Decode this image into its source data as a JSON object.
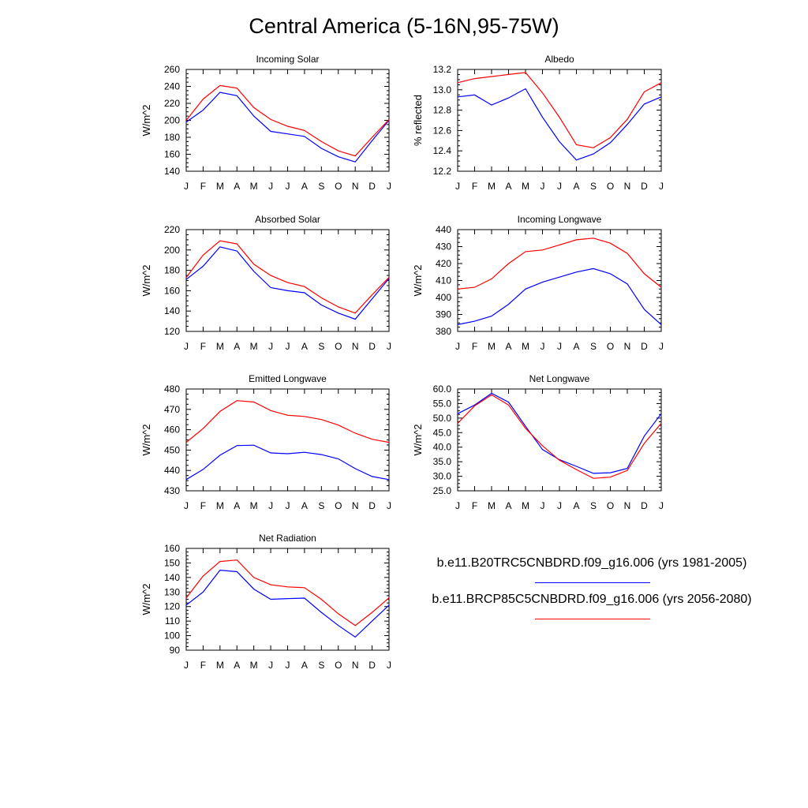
{
  "page": {
    "title": "Central America (5-16N,95-75W)"
  },
  "legend": {
    "items": [
      {
        "label": "b.e11.B20TRC5CNBDRD.f09_g16.006 (yrs 1981-2005)",
        "color": "#0000ff"
      },
      {
        "label": "b.e11.BRCP85C5CNBDRD.f09_g16.006 (yrs 2056-2080)",
        "color": "#ff0000"
      }
    ]
  },
  "colors": {
    "series_1": "#0000ff",
    "series_2": "#ff0000"
  },
  "chart_data": [
    {
      "type": "line",
      "title": "Incoming Solar",
      "ylabel": "W/m^2",
      "categories": [
        "J",
        "F",
        "M",
        "A",
        "M",
        "J",
        "J",
        "A",
        "S",
        "O",
        "N",
        "D",
        "J"
      ],
      "ylim": [
        140,
        260
      ],
      "yticks": [
        "140",
        "160",
        "180",
        "200",
        "220",
        "240",
        "260"
      ],
      "series": [
        {
          "color": "#0000ff",
          "values": [
            198,
            212,
            233,
            229,
            205,
            187,
            184,
            181,
            167,
            157,
            151,
            176,
            200
          ]
        },
        {
          "color": "#ff0000",
          "values": [
            200,
            225,
            241,
            238,
            215,
            201,
            193,
            188,
            175,
            164,
            158,
            180,
            201
          ]
        }
      ]
    },
    {
      "type": "line",
      "title": "Albedo",
      "ylabel": "% reflected",
      "categories": [
        "J",
        "F",
        "M",
        "A",
        "M",
        "J",
        "J",
        "A",
        "S",
        "O",
        "N",
        "D",
        "J"
      ],
      "ylim": [
        12.2,
        13.2
      ],
      "yticks": [
        "12.2",
        "12.4",
        "12.6",
        "12.8",
        "13.0",
        "13.2"
      ],
      "series": [
        {
          "color": "#0000ff",
          "values": [
            12.93,
            12.95,
            12.85,
            12.92,
            13.01,
            12.73,
            12.49,
            12.31,
            12.37,
            12.48,
            12.66,
            12.86,
            12.93
          ]
        },
        {
          "color": "#ff0000",
          "values": [
            13.07,
            13.11,
            13.13,
            13.15,
            13.17,
            12.97,
            12.73,
            12.46,
            12.43,
            12.53,
            12.71,
            12.98,
            13.07
          ]
        }
      ]
    },
    {
      "type": "line",
      "title": "Absorbed Solar",
      "ylabel": "W/m^2",
      "categories": [
        "J",
        "F",
        "M",
        "A",
        "M",
        "J",
        "J",
        "A",
        "S",
        "O",
        "N",
        "D",
        "J"
      ],
      "ylim": [
        120,
        220
      ],
      "yticks": [
        "120",
        "140",
        "160",
        "180",
        "200",
        "220"
      ],
      "series": [
        {
          "color": "#0000ff",
          "values": [
            171,
            184,
            203,
            199,
            179,
            163,
            160,
            158,
            146,
            138,
            132,
            152,
            172
          ]
        },
        {
          "color": "#ff0000",
          "values": [
            173,
            195,
            209,
            206,
            186,
            175,
            168,
            164,
            153,
            144,
            138,
            156,
            173
          ]
        }
      ]
    },
    {
      "type": "line",
      "title": "Incoming Longwave",
      "ylabel": "W/m^2",
      "categories": [
        "J",
        "F",
        "M",
        "A",
        "M",
        "J",
        "J",
        "A",
        "S",
        "O",
        "N",
        "D",
        "J"
      ],
      "ylim": [
        380,
        440
      ],
      "yticks": [
        "380",
        "390",
        "400",
        "410",
        "420",
        "430",
        "440"
      ],
      "series": [
        {
          "color": "#0000ff",
          "values": [
            384,
            386,
            389,
            396,
            405,
            409,
            412,
            415,
            417,
            414,
            408,
            393,
            384
          ]
        },
        {
          "color": "#ff0000",
          "values": [
            405,
            406,
            411,
            420,
            427,
            428,
            431,
            434,
            435,
            432,
            426,
            414,
            406
          ]
        }
      ]
    },
    {
      "type": "line",
      "title": "Emitted Longwave",
      "ylabel": "W/m^2",
      "categories": [
        "J",
        "F",
        "M",
        "A",
        "M",
        "J",
        "J",
        "A",
        "S",
        "O",
        "N",
        "D",
        "J"
      ],
      "ylim": [
        430,
        480
      ],
      "yticks": [
        "430",
        "440",
        "450",
        "460",
        "470",
        "480"
      ],
      "series": [
        {
          "color": "#0000ff",
          "values": [
            435.5,
            440.5,
            447.5,
            452.2,
            452.4,
            448.6,
            448.2,
            448.9,
            447.8,
            445.7,
            440.9,
            437.0,
            435.5
          ]
        },
        {
          "color": "#ff0000",
          "values": [
            453.8,
            460.6,
            469.0,
            474.3,
            473.6,
            469.4,
            467.1,
            466.5,
            465.0,
            462.3,
            458.3,
            455.3,
            453.8
          ]
        }
      ]
    },
    {
      "type": "line",
      "title": "Net Longwave",
      "ylabel": "W/m^2",
      "categories": [
        "J",
        "F",
        "M",
        "A",
        "M",
        "J",
        "J",
        "A",
        "S",
        "O",
        "N",
        "D",
        "J"
      ],
      "ylim": [
        25.0,
        60.0
      ],
      "yticks": [
        "25.0",
        "30.0",
        "35.0",
        "40.0",
        "45.0",
        "50.0",
        "55.0",
        "60.0"
      ],
      "series": [
        {
          "color": "#0000ff",
          "values": [
            51.5,
            54.5,
            58.5,
            55.5,
            47.2,
            39.2,
            35.7,
            33.4,
            31.0,
            31.2,
            32.7,
            43.8,
            51.5
          ]
        },
        {
          "color": "#ff0000",
          "values": [
            48.2,
            54.2,
            58.0,
            54.5,
            46.5,
            40.5,
            35.5,
            32.3,
            29.3,
            29.7,
            32.0,
            41.3,
            48.2
          ]
        }
      ]
    },
    {
      "type": "line",
      "title": "Net Radiation",
      "ylabel": "W/m^2",
      "categories": [
        "J",
        "F",
        "M",
        "A",
        "M",
        "J",
        "J",
        "A",
        "S",
        "O",
        "N",
        "D",
        "J"
      ],
      "ylim": [
        90,
        160
      ],
      "yticks": [
        "90",
        "100",
        "110",
        "120",
        "130",
        "140",
        "150",
        "160"
      ],
      "series": [
        {
          "color": "#0000ff",
          "values": [
            121,
            130,
            145,
            144,
            132,
            125,
            125.5,
            125.8,
            116,
            107,
            99,
            110,
            121
          ]
        },
        {
          "color": "#ff0000",
          "values": [
            126,
            141,
            151,
            152,
            140,
            135,
            133.5,
            133,
            125,
            115,
            107,
            116,
            126
          ]
        }
      ]
    }
  ]
}
